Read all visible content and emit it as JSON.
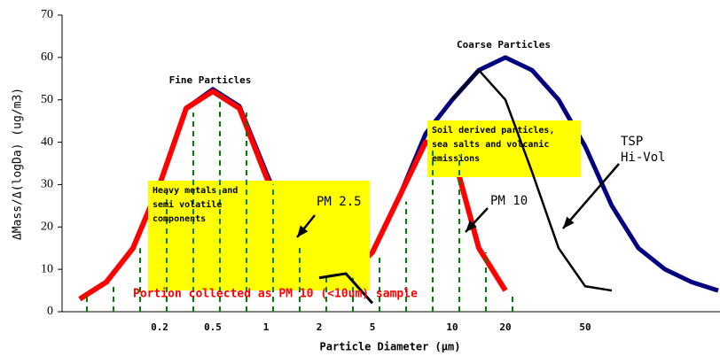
{
  "chart_data": {
    "type": "line",
    "ylabel": "ΔMass/Δ(logDa) (ug/m3)",
    "xlabel": "Particle Diameter (μm)",
    "categories": [
      null,
      null,
      null,
      "0.2",
      null,
      "0.5",
      null,
      "1",
      null,
      "2",
      null,
      "5",
      null,
      null,
      "10",
      null,
      "20",
      null,
      null,
      "50",
      null,
      null,
      null,
      null,
      null
    ],
    "ylim": [
      0,
      70
    ],
    "yticks": [
      0,
      10,
      20,
      30,
      40,
      50,
      60,
      70
    ],
    "series": [
      {
        "color": "#000080",
        "values": [
          3,
          7,
          15,
          30,
          48,
          52.5,
          48.5,
          33,
          18,
          10,
          8,
          14,
          27,
          42,
          50,
          57,
          60,
          57,
          50,
          39,
          25,
          15,
          10,
          7,
          5
        ]
      },
      {
        "name": "PM 10",
        "color": "#ff0000",
        "values": [
          3,
          7,
          15,
          30,
          48,
          52,
          48,
          32,
          17,
          9,
          8,
          14,
          27,
          40,
          38,
          15,
          5,
          null,
          null,
          null,
          null,
          null,
          null,
          null,
          null
        ]
      },
      {
        "color": "#008000",
        "values": [
          4,
          6,
          15,
          28,
          47,
          51,
          47,
          30,
          16,
          9,
          8,
          13,
          26,
          38,
          37,
          14,
          4,
          null,
          null,
          null,
          null,
          null,
          null,
          null,
          null
        ]
      },
      {
        "name": "PM 2.5",
        "color": "#000000",
        "values": [
          null,
          null,
          null,
          null,
          null,
          null,
          null,
          null,
          null,
          8,
          9,
          2,
          null,
          null,
          null,
          null,
          null,
          null,
          null,
          null,
          null,
          null,
          null,
          null,
          null
        ]
      },
      {
        "name": "TSP Hi-Vol",
        "color": "#000000",
        "values": [
          null,
          null,
          null,
          null,
          null,
          null,
          null,
          null,
          null,
          null,
          null,
          null,
          null,
          null,
          50,
          57,
          50,
          33,
          15,
          6,
          5,
          null,
          null,
          null,
          null
        ]
      }
    ],
    "annotations": [
      "Fine Particles",
      "Coarse Particles",
      "Heavy metals and semi volatile components",
      "Soil derived particles, sea salts and volcanic emissions",
      "Portion collected as PM 10 (<10um) sample"
    ]
  }
}
